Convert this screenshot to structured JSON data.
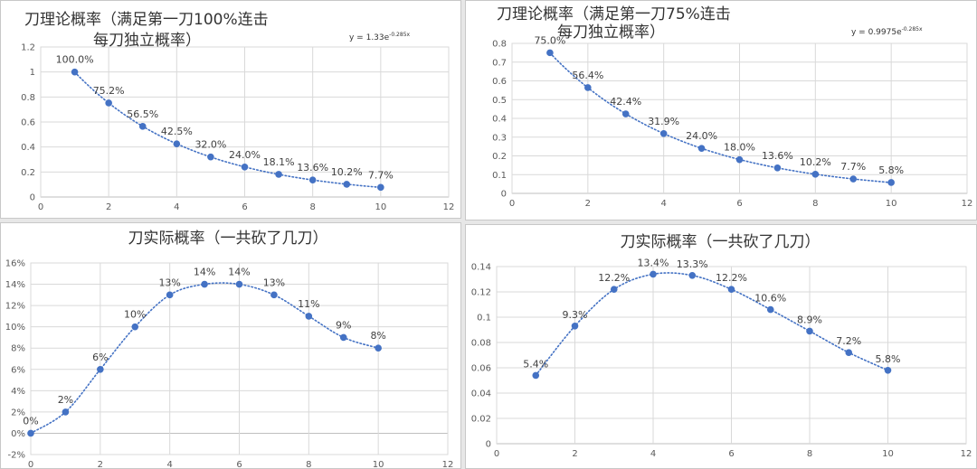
{
  "chart_data": [
    {
      "type": "scatter",
      "title_lines": [
        "刀理论概率（满足第一刀100%连击",
        "每刀独立概率）"
      ],
      "equation": "y = 1.33e",
      "equation_exp": "-0.285x",
      "xlim": [
        0,
        12
      ],
      "xticks": [
        "0",
        "2",
        "4",
        "6",
        "8",
        "10",
        "12"
      ],
      "xtick_values": [
        0,
        2,
        4,
        6,
        8,
        10,
        12
      ],
      "ylim": [
        0,
        1.2
      ],
      "yticks": [
        "0",
        "0.2",
        "0.4",
        "0.6",
        "0.8",
        "1",
        "1.2"
      ],
      "ytick_values": [
        0,
        0.2,
        0.4,
        0.6,
        0.8,
        1.0,
        1.2
      ],
      "trendline": "exponential",
      "x": [
        1,
        2,
        3,
        4,
        5,
        6,
        7,
        8,
        9,
        10
      ],
      "y": [
        1.0,
        0.752,
        0.565,
        0.425,
        0.32,
        0.24,
        0.181,
        0.136,
        0.102,
        0.077
      ],
      "labels": [
        "100.0%",
        "75.2%",
        "56.5%",
        "42.5%",
        "32.0%",
        "24.0%",
        "18.1%",
        "13.6%",
        "10.2%",
        "7.7%"
      ],
      "color": "#4472c4"
    },
    {
      "type": "scatter",
      "title_lines": [
        "刀理论概率（满足第一刀75%连击",
        "每刀独立概率）"
      ],
      "equation": "y = 0.9975e",
      "equation_exp": "-0.285x",
      "xlim": [
        0,
        12
      ],
      "xticks": [
        "0",
        "2",
        "4",
        "6",
        "8",
        "10",
        "12"
      ],
      "xtick_values": [
        0,
        2,
        4,
        6,
        8,
        10,
        12
      ],
      "ylim": [
        0,
        0.8
      ],
      "yticks": [
        "0",
        "0.1",
        "0.2",
        "0.3",
        "0.4",
        "0.5",
        "0.6",
        "0.7",
        "0.8"
      ],
      "ytick_values": [
        0,
        0.1,
        0.2,
        0.3,
        0.4,
        0.5,
        0.6,
        0.7,
        0.8
      ],
      "trendline": "exponential",
      "x": [
        1,
        2,
        3,
        4,
        5,
        6,
        7,
        8,
        9,
        10
      ],
      "y": [
        0.75,
        0.564,
        0.424,
        0.319,
        0.24,
        0.18,
        0.136,
        0.102,
        0.077,
        0.058
      ],
      "labels": [
        "75.0%",
        "56.4%",
        "42.4%",
        "31.9%",
        "24.0%",
        "18.0%",
        "13.6%",
        "10.2%",
        "7.7%",
        "5.8%"
      ],
      "color": "#4472c4"
    },
    {
      "type": "scatter",
      "title_lines": [
        "刀实际概率（一共砍了几刀）"
      ],
      "equation": "",
      "equation_exp": "",
      "xlim": [
        0,
        12
      ],
      "xticks": [
        "0",
        "2",
        "4",
        "6",
        "8",
        "10",
        "12"
      ],
      "xtick_values": [
        0,
        2,
        4,
        6,
        8,
        10,
        12
      ],
      "ylim": [
        -0.02,
        0.16
      ],
      "yticks": [
        "-2%",
        "0%",
        "2%",
        "4%",
        "6%",
        "8%",
        "10%",
        "12%",
        "14%",
        "16%"
      ],
      "ytick_values": [
        -0.02,
        0,
        0.02,
        0.04,
        0.06,
        0.08,
        0.1,
        0.12,
        0.14,
        0.16
      ],
      "trendline": "smooth",
      "x": [
        0,
        1,
        2,
        3,
        4,
        5,
        6,
        7,
        8,
        9,
        10
      ],
      "y": [
        0,
        0.02,
        0.06,
        0.1,
        0.13,
        0.14,
        0.14,
        0.13,
        0.11,
        0.09,
        0.08
      ],
      "labels": [
        "0%",
        "2%",
        "6%",
        "10%",
        "13%",
        "14%",
        "14%",
        "13%",
        "11%",
        "9%",
        "8%"
      ],
      "color": "#4472c4"
    },
    {
      "type": "scatter",
      "title_lines": [
        "刀实际概率（一共砍了几刀）"
      ],
      "equation": "",
      "equation_exp": "",
      "xlim": [
        0,
        12
      ],
      "xticks": [
        "0",
        "2",
        "4",
        "6",
        "8",
        "10",
        "12"
      ],
      "xtick_values": [
        0,
        2,
        4,
        6,
        8,
        10,
        12
      ],
      "ylim": [
        0,
        0.14
      ],
      "yticks": [
        "0",
        "0.02",
        "0.04",
        "0.06",
        "0.08",
        "0.1",
        "0.12",
        "0.14"
      ],
      "ytick_values": [
        0,
        0.02,
        0.04,
        0.06,
        0.08,
        0.1,
        0.12,
        0.14
      ],
      "trendline": "smooth",
      "x": [
        1,
        2,
        3,
        4,
        5,
        6,
        7,
        8,
        9,
        10
      ],
      "y": [
        0.054,
        0.093,
        0.122,
        0.134,
        0.133,
        0.122,
        0.106,
        0.089,
        0.072,
        0.058
      ],
      "labels": [
        "5.4%",
        "9.3%",
        "12.2%",
        "13.4%",
        "13.3%",
        "12.2%",
        "10.6%",
        "8.9%",
        "7.2%",
        "5.8%"
      ],
      "color": "#4472c4"
    }
  ]
}
